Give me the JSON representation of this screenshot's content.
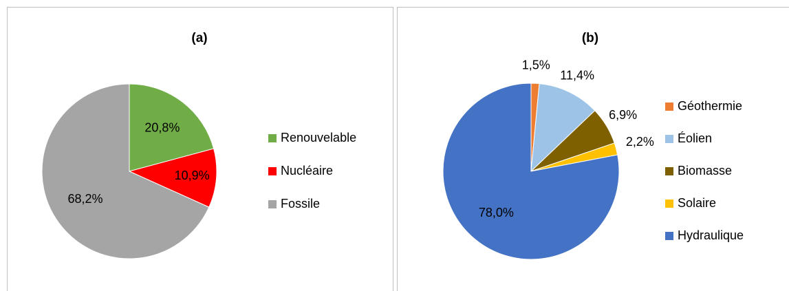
{
  "chart_data": [
    {
      "type": "pie",
      "title": "(a)",
      "categories": [
        "Renouvelable",
        "Nucléaire",
        "Fossile"
      ],
      "values": [
        20.8,
        10.9,
        68.2
      ],
      "value_labels": [
        "20,8%",
        "10,9%",
        "68,2%"
      ],
      "colors": [
        "#70ad47",
        "#ff0000",
        "#a5a5a5"
      ],
      "legend": "right"
    },
    {
      "type": "pie",
      "title": "(b)",
      "categories": [
        "Géothermie",
        "Éolien",
        "Biomasse",
        "Solaire",
        "Hydraulique"
      ],
      "values": [
        1.5,
        11.4,
        6.9,
        2.2,
        78.0
      ],
      "value_labels": [
        "1,5%",
        "11,4%",
        "6,9%",
        "2,2%",
        "78,0%"
      ],
      "colors": [
        "#ed7d31",
        "#9dc3e6",
        "#7f6000",
        "#ffc000",
        "#4472c4"
      ],
      "legend": "right"
    }
  ]
}
